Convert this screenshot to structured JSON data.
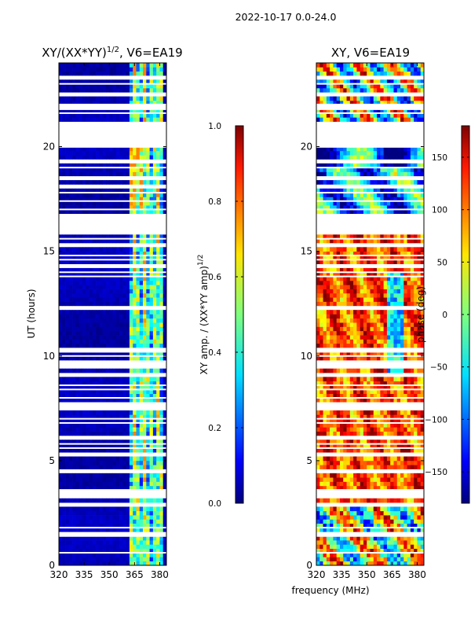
{
  "figure": {
    "suptitle": "2022-10-17 0.0-24.0",
    "shared_xlabel": "frequency (MHz)"
  },
  "chart_data": [
    {
      "type": "heatmap",
      "title": "XY/(XX*YY)^1/2, V6=EA19",
      "title_main": "XY/(XX*YY)",
      "title_sup": "1/2",
      "title_tail": ", V6=EA19",
      "xlabel": "",
      "ylabel": "UT (hours)",
      "xlim": [
        320,
        384
      ],
      "ylim": [
        0,
        24
      ],
      "xticks": [
        320,
        335,
        350,
        365,
        380
      ],
      "yticks": [
        0,
        5,
        10,
        15,
        20
      ],
      "colorbar": {
        "label": "XY amp. / (XX*YY amp)^1/2",
        "label_main": "XY amp. / (XX*YY amp)",
        "label_sup": "1/2",
        "range": [
          0.0,
          1.0
        ],
        "ticks": [
          "0.0",
          "0.2",
          "0.4",
          "0.6",
          "0.8",
          "1.0"
        ],
        "colormap": "jet"
      },
      "description": "Low normalized amplitude (~0.05) across most of band; elevated amplitude (~0.3-0.7) in channels ~362-382 MHz",
      "background_level": 0.05,
      "active_band": [
        362,
        382
      ],
      "active_level": 0.4
    },
    {
      "type": "heatmap",
      "title": "XY, V6=EA19",
      "xlabel": "",
      "ylabel": "",
      "xlim": [
        320,
        384
      ],
      "ylim": [
        0,
        24
      ],
      "xticks": [
        320,
        335,
        350,
        365,
        380
      ],
      "yticks": [
        0,
        5,
        10,
        15,
        20
      ],
      "colorbar": {
        "label": "phase (deg)",
        "range": [
          -180,
          180
        ],
        "ticks": [
          "-150",
          "-100",
          "-50",
          "0",
          "50",
          "100",
          "150"
        ],
        "colormap": "jet"
      },
      "description": "XY phase varies strongly with time and frequency; predominantly positive phase (orange/red) between 3-16 UT, mixed elsewhere"
    }
  ],
  "flagged_hours": [
    0.6,
    1.4,
    1.55,
    1.8,
    2.9,
    3.3,
    3.5,
    3.6,
    4.5,
    5.3,
    5.6,
    5.8,
    6.1,
    6.8,
    7.0,
    7.5,
    7.75,
    8.0,
    8.4,
    8.6,
    9.1,
    9.5,
    9.7,
    10.0,
    10.2,
    10.35,
    12.3,
    13.8,
    14.0,
    14.3,
    14.6,
    14.8,
    15.3,
    15.6,
    15.9,
    16.1,
    16.3,
    16.6,
    16.75,
    17.0,
    17.4,
    17.8,
    18.1,
    18.5,
    19.0,
    19.3,
    21.1,
    21.6,
    22.0,
    22.5,
    23.0,
    23.3
  ],
  "flagged_ranges": [
    [
      19.95,
      21.1
    ],
    [
      16.4,
      16.5
    ],
    [
      21.75,
      22.05
    ]
  ]
}
